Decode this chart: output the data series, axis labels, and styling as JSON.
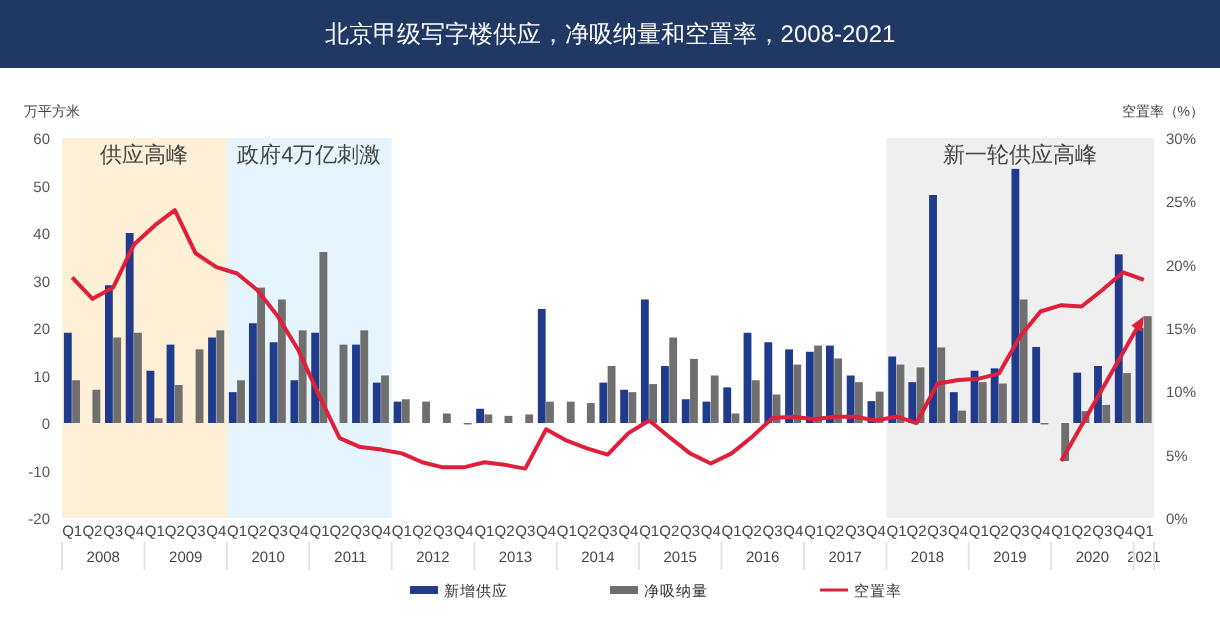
{
  "chart_data": {
    "type": "bar",
    "title": "北京甲级写字楼供应，净吸纳量和空置率，2008-2021",
    "ylabel": "万平方米",
    "y2label": "空置率（%）",
    "x": [
      "2008-02-15",
      "2008-05-15",
      "2008-08-15",
      "2008-11-15",
      "2009-02-15",
      "2009-05-15",
      "2009-08-15",
      "2009-11-15",
      "2010-02-15",
      "2010-05-15",
      "2010-08-15",
      "2010-11-15",
      "2011-02-15",
      "2011-05-15",
      "2011-08-15",
      "2011-11-15",
      "2012-02-15",
      "2012-05-15",
      "2012-08-15",
      "2012-11-15",
      "2013-02-15",
      "2013-05-15",
      "2013-08-15",
      "2013-11-15",
      "2014-02-15",
      "2014-05-15",
      "2014-08-15",
      "2014-11-15",
      "2015-02-15",
      "2015-05-15",
      "2015-08-15",
      "2015-11-15",
      "2016-02-15",
      "2016-05-15",
      "2016-08-15",
      "2016-11-15",
      "2017-02-15",
      "2017-05-15",
      "2017-08-15",
      "2017-11-15",
      "2018-02-15",
      "2018-05-15",
      "2018-08-15",
      "2018-11-15",
      "2019-02-15",
      "2019-05-15",
      "2019-08-15",
      "2019-11-15",
      "2020-02-15",
      "2020-05-15",
      "2020-08-15",
      "2020-11-15",
      "2021-02-15"
    ],
    "series": [
      {
        "name": "新增供应",
        "color": "#203a8c",
        "values": [
          19,
          0,
          29,
          40,
          11,
          16.5,
          0,
          18,
          6.5,
          21,
          17,
          9,
          19,
          0,
          16.5,
          8.5,
          4.5,
          0,
          0,
          0,
          3,
          0,
          0,
          24,
          0,
          0,
          8.5,
          7,
          26,
          12,
          5,
          4.5,
          7.5,
          19,
          17,
          15.5,
          15,
          16.3,
          10,
          4.6,
          14,
          8.6,
          48,
          6.5,
          11,
          11.5,
          53.5,
          16,
          0,
          10.6,
          12,
          35.5,
          20
        ]
      },
      {
        "name": "净吸纳量",
        "color": "#6f6f6f",
        "values": [
          9,
          7,
          18,
          19,
          1,
          8,
          15.5,
          19.5,
          9,
          28.5,
          26,
          19.5,
          36,
          16.5,
          19.5,
          10,
          5,
          4.5,
          2,
          -0.3,
          1.8,
          1.5,
          1.8,
          4.5,
          4.5,
          4.2,
          12,
          6.5,
          8.2,
          18,
          13.5,
          10,
          2,
          9,
          6,
          12.3,
          16.3,
          13.6,
          8.6,
          6.6,
          12.3,
          11.7,
          15.9,
          2.6,
          8.6,
          8.3,
          26,
          -0.3,
          -8,
          2.5,
          3.8,
          10.5,
          22.5
        ]
      },
      {
        "name": "空置率",
        "type": "line",
        "axis": "y2",
        "color": "#e0203a",
        "values": [
          19,
          17.3,
          18.2,
          21.6,
          23.1,
          24.3,
          20.9,
          19.8,
          19.3,
          18,
          15.9,
          13.2,
          9.6,
          6.3,
          5.6,
          5.4,
          5.1,
          4.4,
          4,
          4,
          4.4,
          4.2,
          3.9,
          7,
          6.1,
          5.5,
          5,
          6.7,
          7.7,
          6.4,
          5.1,
          4.3,
          5.1,
          6.4,
          7.9,
          8,
          7.8,
          8,
          8,
          7.7,
          8,
          7.5,
          10.6,
          10.9,
          11,
          11.4,
          14.3,
          16.3,
          16.8,
          16.7,
          18,
          19.4,
          18.8
        ]
      }
    ],
    "xlim": [
      "2008-01-01",
      "2021-04-01"
    ],
    "xticks": [
      {
        "value": "2008-02-15",
        "label": "Q1"
      },
      {
        "value": "2008-05-15",
        "label": "Q2"
      },
      {
        "value": "2008-08-15",
        "label": "Q3"
      },
      {
        "value": "2008-11-15",
        "label": "Q4"
      },
      {
        "value": "2009-02-15",
        "label": "Q1"
      },
      {
        "value": "2009-05-15",
        "label": "Q2"
      },
      {
        "value": "2009-08-15",
        "label": "Q3"
      },
      {
        "value": "2009-11-15",
        "label": "Q4"
      },
      {
        "value": "2010-02-15",
        "label": "Q1"
      },
      {
        "value": "2010-05-15",
        "label": "Q2"
      },
      {
        "value": "2010-08-15",
        "label": "Q3"
      },
      {
        "value": "2010-11-15",
        "label": "Q4"
      },
      {
        "value": "2011-02-15",
        "label": "Q1"
      },
      {
        "value": "2011-05-15",
        "label": "Q2"
      },
      {
        "value": "2011-08-15",
        "label": "Q3"
      },
      {
        "value": "2011-11-15",
        "label": "Q4"
      },
      {
        "value": "2012-02-15",
        "label": "Q1"
      },
      {
        "value": "2012-05-15",
        "label": "Q2"
      },
      {
        "value": "2012-08-15",
        "label": "Q3"
      },
      {
        "value": "2012-11-15",
        "label": "Q4"
      },
      {
        "value": "2013-02-15",
        "label": "Q1"
      },
      {
        "value": "2013-05-15",
        "label": "Q2"
      },
      {
        "value": "2013-08-15",
        "label": "Q3"
      },
      {
        "value": "2013-11-15",
        "label": "Q4"
      },
      {
        "value": "2014-02-15",
        "label": "Q1"
      },
      {
        "value": "2014-05-15",
        "label": "Q2"
      },
      {
        "value": "2014-08-15",
        "label": "Q3"
      },
      {
        "value": "2014-11-15",
        "label": "Q4"
      },
      {
        "value": "2015-02-15",
        "label": "Q1"
      },
      {
        "value": "2015-05-15",
        "label": "Q2"
      },
      {
        "value": "2015-08-15",
        "label": "Q3"
      },
      {
        "value": "2015-11-15",
        "label": "Q4"
      },
      {
        "value": "2016-02-15",
        "label": "Q1"
      },
      {
        "value": "2016-05-15",
        "label": "Q2"
      },
      {
        "value": "2016-08-15",
        "label": "Q3"
      },
      {
        "value": "2016-11-15",
        "label": "Q4"
      },
      {
        "value": "2017-02-15",
        "label": "Q1"
      },
      {
        "value": "2017-05-15",
        "label": "Q2"
      },
      {
        "value": "2017-08-15",
        "label": "Q3"
      },
      {
        "value": "2017-11-15",
        "label": "Q4"
      },
      {
        "value": "2018-02-15",
        "label": "Q1"
      },
      {
        "value": "2018-05-15",
        "label": "Q2"
      },
      {
        "value": "2018-08-15",
        "label": "Q3"
      },
      {
        "value": "2018-11-15",
        "label": "Q4"
      },
      {
        "value": "2019-02-15",
        "label": "Q1"
      },
      {
        "value": "2019-05-15",
        "label": "Q2"
      },
      {
        "value": "2019-08-15",
        "label": "Q3"
      },
      {
        "value": "2019-11-15",
        "label": "Q4"
      },
      {
        "value": "2020-02-15",
        "label": "Q1"
      },
      {
        "value": "2020-05-15",
        "label": "Q2"
      },
      {
        "value": "2020-08-15",
        "label": "Q3"
      },
      {
        "value": "2020-11-15",
        "label": "Q4"
      },
      {
        "value": "2021-02-15",
        "label": "Q1"
      }
    ],
    "annotations": [
      "2008",
      "2009",
      "2010",
      "2011",
      "2012",
      "2013",
      "2014",
      "2015",
      "2016",
      "2017",
      "2018",
      "2019",
      "2020",
      "2021"
    ],
    "ylim": [
      -20,
      60
    ],
    "yticks": [
      -20,
      -10,
      0,
      10,
      20,
      30,
      40,
      50,
      60
    ],
    "y2lim": [
      0,
      30
    ],
    "y2ticks": [
      {
        "value": 0,
        "label": "0%"
      },
      {
        "value": 5,
        "label": "5%"
      },
      {
        "value": 10,
        "label": "10%"
      },
      {
        "value": 15,
        "label": "15%"
      },
      {
        "value": 20,
        "label": "20%"
      },
      {
        "value": 25,
        "label": "25%"
      },
      {
        "value": 30,
        "label": "30%"
      }
    ],
    "bands": [
      {
        "axis": "x",
        "from": "2008-01-01",
        "to": "2010-01-01",
        "label": "供应高峰",
        "color": "#fdf0d6"
      },
      {
        "axis": "x",
        "from": "2010-01-01",
        "to": "2012-01-01",
        "label": "政府4万亿刺激",
        "color": "#e6f4fd"
      },
      {
        "axis": "x",
        "from": "2018-01-01",
        "to": "2021-04-01",
        "label": "新一轮供应高峰",
        "color": "#efefef"
      }
    ],
    "legend": "bottom"
  }
}
